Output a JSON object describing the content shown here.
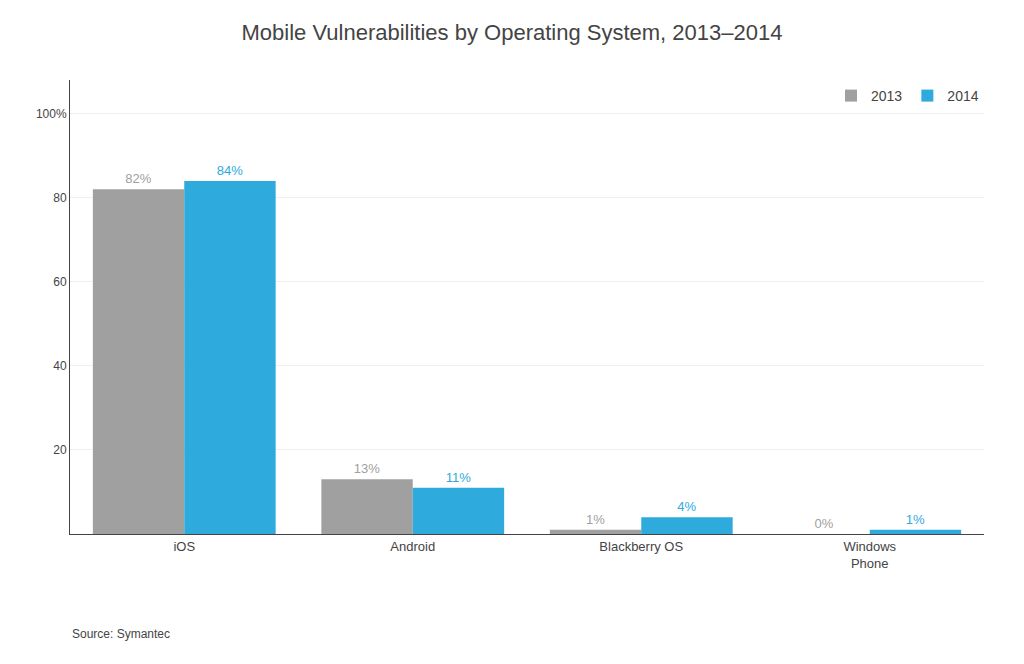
{
  "chart_data": {
    "type": "bar",
    "title": "Mobile Vulnerabilities by Operating System, 2013–2014",
    "annotations": [
      "Source: Symantec"
    ],
    "categories": [
      "iOS",
      "Android",
      "Blackberry OS",
      "Windows\nPhone"
    ],
    "series": [
      {
        "name": "2013",
        "color": "#a0a0a0",
        "values": [
          82,
          13,
          1,
          0
        ],
        "value_labels": [
          "82%",
          "13%",
          "1%",
          "0%"
        ]
      },
      {
        "name": "2014",
        "color": "#2eaadc",
        "values": [
          84,
          11,
          4,
          1
        ],
        "value_labels": [
          "84%",
          "11%",
          "4%",
          "1%"
        ]
      }
    ],
    "data_labels": true,
    "ylim": [
      0,
      108
    ],
    "yticks": [
      20,
      40,
      60,
      80,
      {
        "value": 100,
        "label": "100%"
      }
    ],
    "grid": true,
    "legend": "upper right"
  }
}
